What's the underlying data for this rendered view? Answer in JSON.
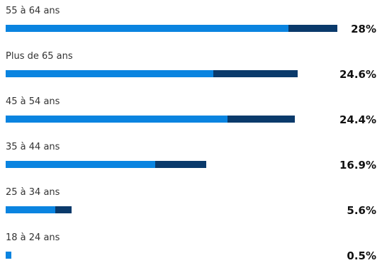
{
  "colors": {
    "light": "#0a84e0",
    "dark": "#0a3a6b"
  },
  "chart_data": {
    "type": "bar",
    "orientation": "horizontal",
    "categories": [
      "55 à 64 ans",
      "Plus de 65 ans",
      "45 à 54 ans",
      "35 à 44 ans",
      "25 à 34 ans",
      "18 à 24 ans"
    ],
    "values": [
      28,
      24.6,
      24.4,
      16.9,
      5.6,
      0.5
    ],
    "value_labels": [
      "28%",
      "24.6%",
      "24.4%",
      "16.9%",
      "5.6%",
      "0.5%"
    ],
    "series": [
      {
        "values": [
          23.9,
          17.5,
          18.7,
          12.6,
          4.2,
          0.5
        ]
      },
      {
        "values": [
          4.1,
          7.1,
          5.7,
          4.3,
          1.4,
          0
        ]
      }
    ],
    "xlim": [
      0,
      28
    ],
    "grid": false,
    "legend": "none"
  }
}
